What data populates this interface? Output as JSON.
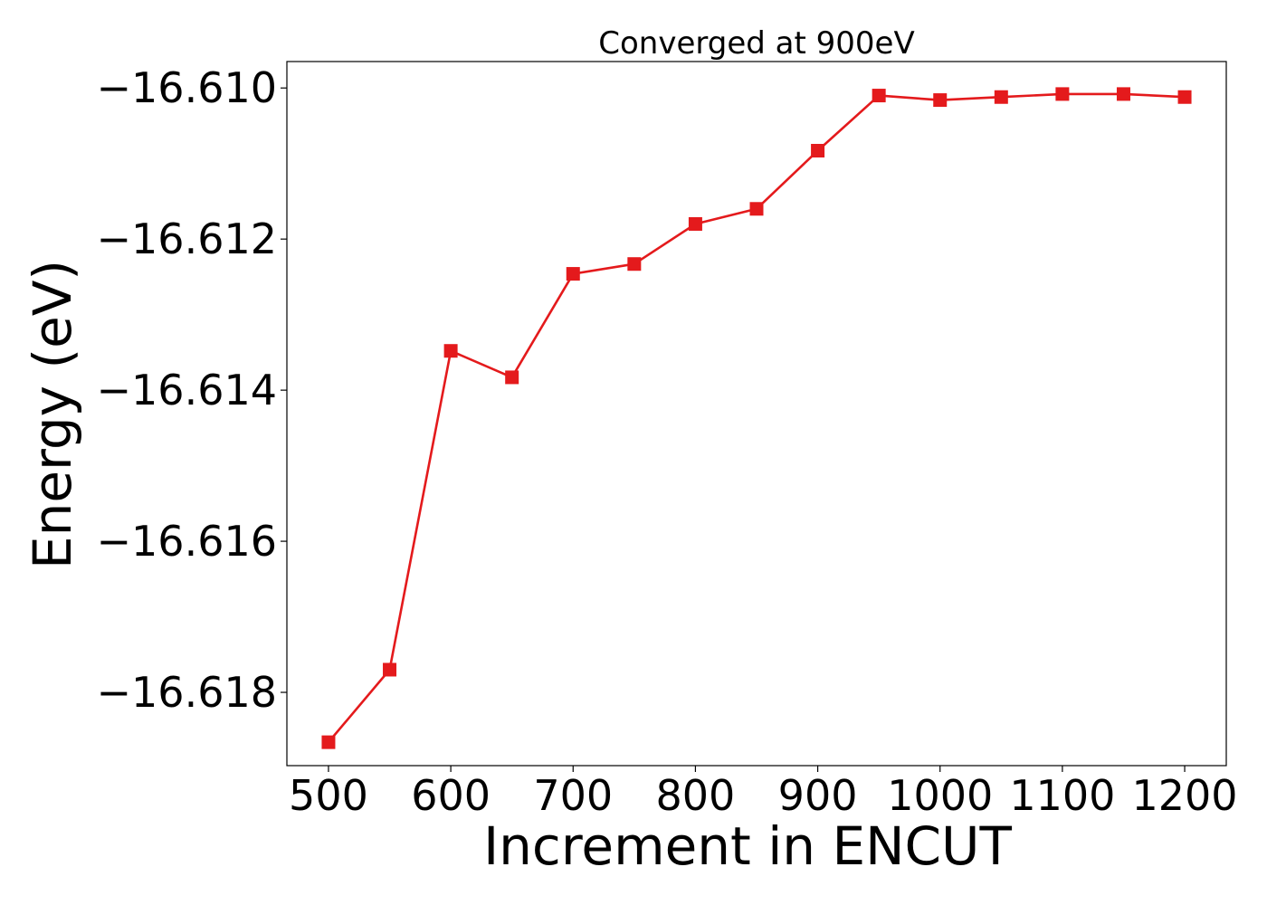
{
  "chart_data": {
    "type": "line",
    "title": "Converged at 900eV",
    "xlabel": "Increment in ENCUT",
    "ylabel": "Energy (eV)",
    "xlim": [
      466,
      1234
    ],
    "ylim": [
      -16.61897,
      -16.60965
    ],
    "x_ticks": [
      500,
      600,
      700,
      800,
      900,
      1000,
      1100,
      1200
    ],
    "x_tick_labels": [
      "500",
      "600",
      "700",
      "800",
      "900",
      "1000",
      "1100",
      "1200"
    ],
    "y_ticks": [
      -16.618,
      -16.616,
      -16.614,
      -16.612,
      -16.61
    ],
    "y_tick_labels": [
      "−16.618",
      "−16.616",
      "−16.614",
      "−16.612",
      "−16.610"
    ],
    "grid": false,
    "series": [
      {
        "color": "#e41a1c",
        "marker": "square",
        "x": [
          500,
          550,
          600,
          650,
          700,
          750,
          800,
          850,
          900,
          950,
          1000,
          1050,
          1100,
          1150,
          1200
        ],
        "y": [
          -16.61866,
          -16.6177,
          -16.61348,
          -16.61383,
          -16.61246,
          -16.61233,
          -16.6118,
          -16.6116,
          -16.61083,
          -16.6101,
          -16.61016,
          -16.61012,
          -16.61008,
          -16.61008,
          -16.61012
        ]
      }
    ]
  }
}
